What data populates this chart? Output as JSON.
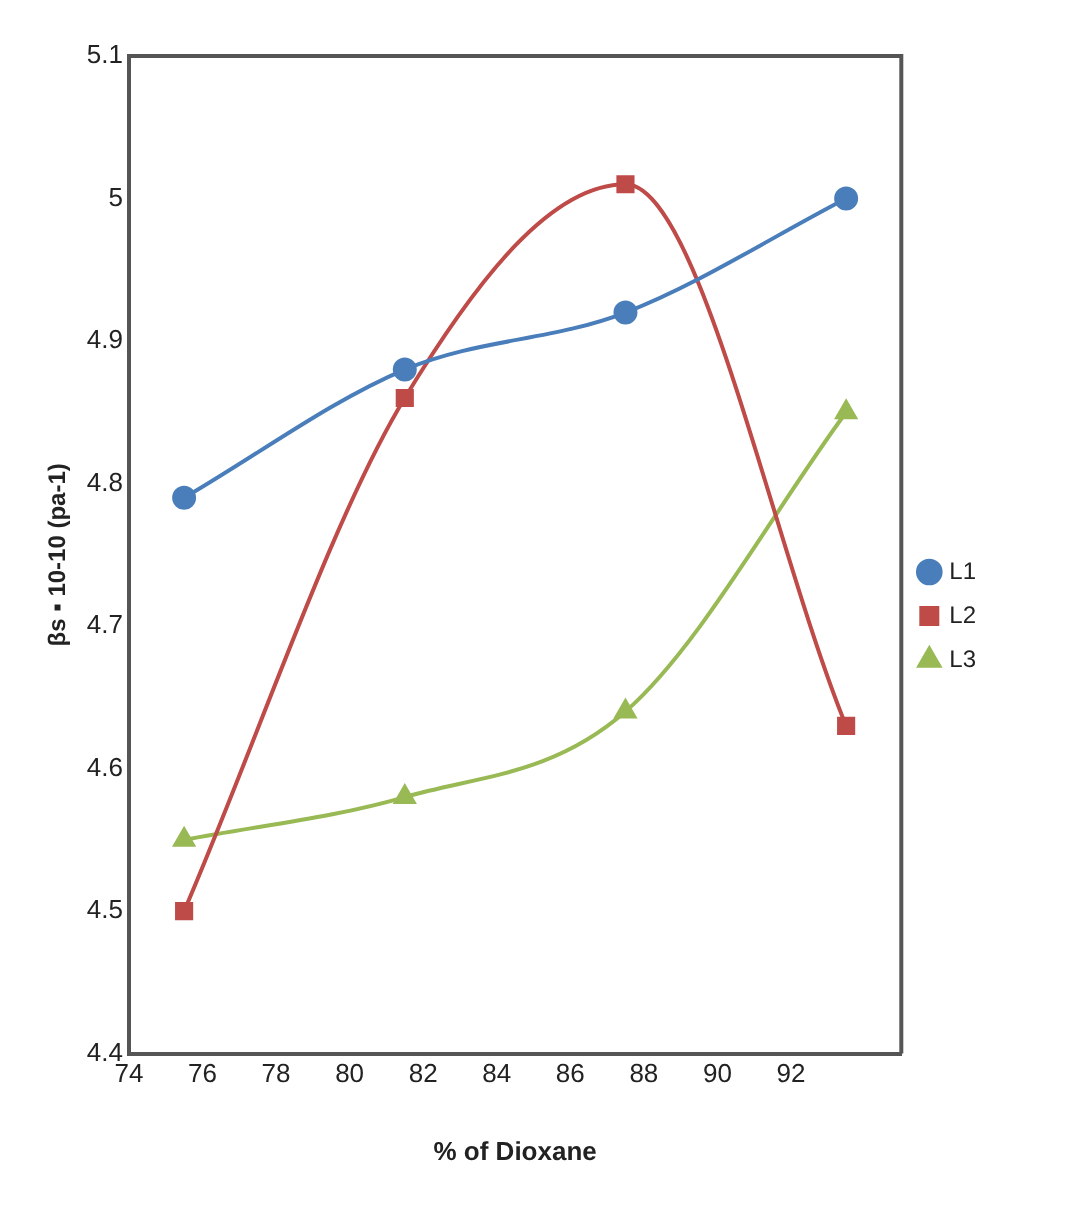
{
  "chart_data": {
    "type": "line",
    "xlabel": "% of Dioxane",
    "ylabel": "βs ▪ 10-10 (pa-1)",
    "x": [
      75.5,
      81.5,
      87.5,
      93.5
    ],
    "series": [
      {
        "name": "L1",
        "color": "#4a7ebb",
        "marker": "circle",
        "values": [
          4.79,
          4.88,
          4.92,
          5.0
        ]
      },
      {
        "name": "L2",
        "color": "#be4b48",
        "marker": "square",
        "values": [
          4.5,
          4.86,
          5.01,
          4.63
        ]
      },
      {
        "name": "L3",
        "color": "#98b954",
        "marker": "triangle",
        "values": [
          4.55,
          4.58,
          4.64,
          4.85
        ]
      }
    ],
    "xlim": [
      74,
      95
    ],
    "xticks": [
      74,
      76,
      78,
      80,
      82,
      84,
      86,
      88,
      90,
      92
    ],
    "ylim": [
      4.4,
      5.1
    ],
    "yticks": [
      4.4,
      4.5,
      4.6,
      4.7,
      4.8,
      4.9,
      5,
      5.1
    ],
    "grid": false,
    "legend": "right"
  }
}
